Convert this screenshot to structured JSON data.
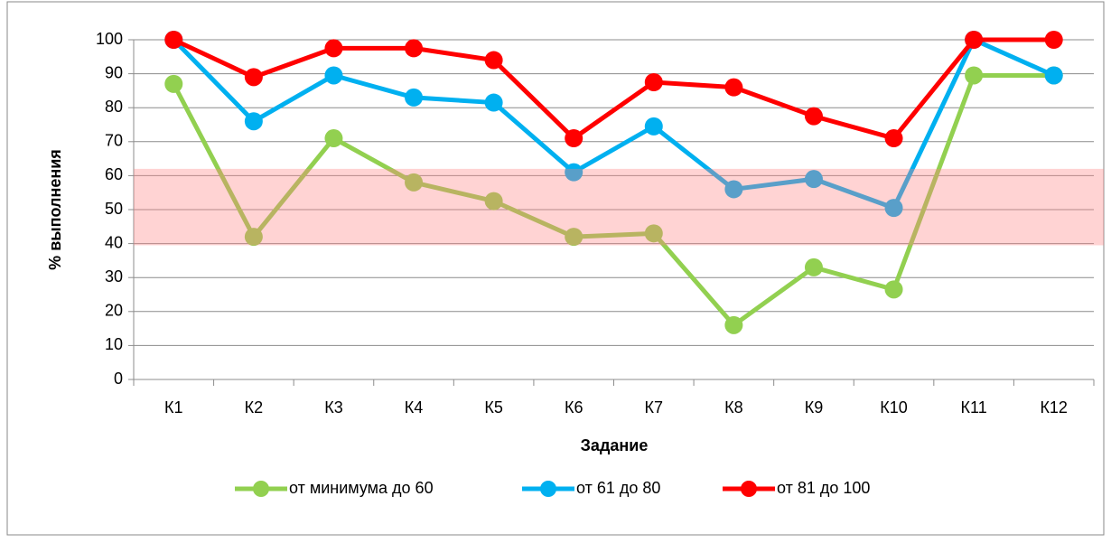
{
  "chart_data": {
    "type": "line",
    "x_label": "Задание",
    "y_label": "% выполнения",
    "categories": [
      "К1",
      "К2",
      "К3",
      "К4",
      "К5",
      "К6",
      "К7",
      "К8",
      "К9",
      "К10",
      "К11",
      "К12"
    ],
    "series": [
      {
        "name": "от минимума до 60",
        "color": "#92d050",
        "values": [
          87,
          42,
          71,
          58,
          52.5,
          42,
          43,
          16,
          33,
          26.5,
          89.5,
          89.5
        ]
      },
      {
        "name": "от 61 до 80",
        "color": "#00b0f0",
        "values": [
          100,
          76,
          89.5,
          83,
          81.5,
          61,
          74.5,
          56,
          59,
          50.5,
          100,
          89.5
        ]
      },
      {
        "name": "от 81 до 100",
        "color": "#ff0000",
        "values": [
          100,
          89,
          97.5,
          97.5,
          94,
          71,
          87.5,
          86,
          77.5,
          71,
          100,
          100
        ]
      }
    ],
    "highlight_band": {
      "from": 39.5,
      "to": 62,
      "color": "#ff8080"
    },
    "ylim": [
      0,
      100
    ],
    "yticks": [
      0,
      10,
      20,
      30,
      40,
      50,
      60,
      70,
      80,
      90,
      100
    ],
    "grid": true,
    "legend": "bottom"
  }
}
